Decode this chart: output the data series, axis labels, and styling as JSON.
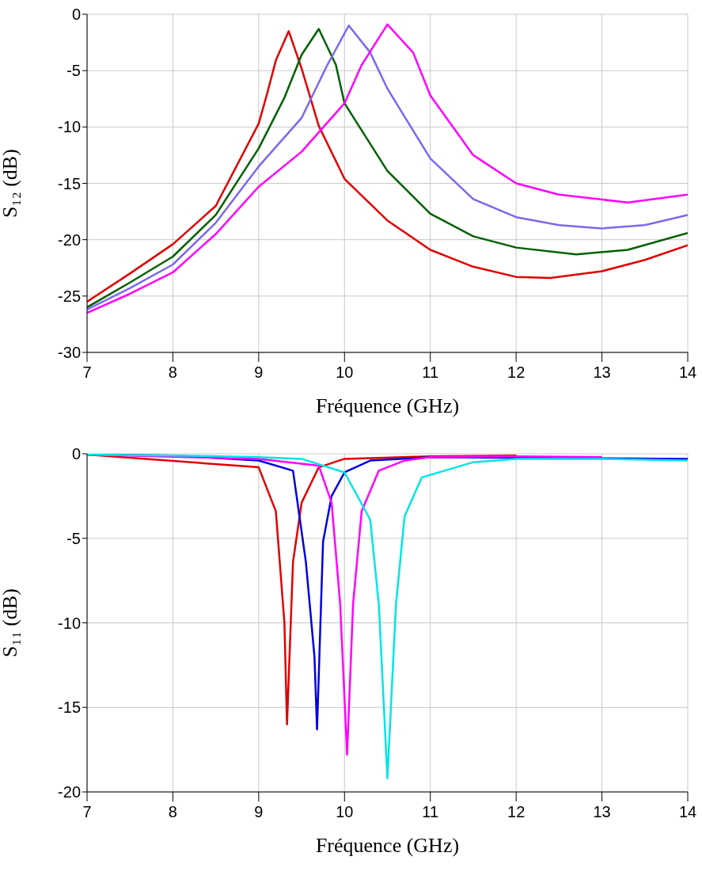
{
  "chart_data": [
    {
      "type": "line",
      "xlabel": "Fréquence (GHz)",
      "ylabel": "S₁₂ (dB)",
      "xlim": [
        7,
        14
      ],
      "xticks": [
        7,
        8,
        9,
        10,
        11,
        12,
        13,
        14
      ],
      "ylim": [
        -30,
        0
      ],
      "yticks": [
        -30,
        -25,
        -20,
        -15,
        -10,
        -5,
        0
      ],
      "grid": true,
      "series": [
        {
          "color": "#e00000",
          "x": [
            7,
            7.5,
            8,
            8.5,
            9,
            9.1,
            9.2,
            9.35,
            9.5,
            9.7,
            10,
            10.5,
            11,
            11.5,
            12,
            12.4,
            13,
            13.5,
            14
          ],
          "values": [
            -25.5,
            -23,
            -20.4,
            -17,
            -9.7,
            -7,
            -4.1,
            -1.5,
            -4.8,
            -9.9,
            -14.6,
            -18.3,
            -20.9,
            -22.4,
            -23.3,
            -23.4,
            -22.8,
            -21.8,
            -20.5
          ]
        },
        {
          "color": "#006000",
          "x": [
            7,
            7.5,
            8,
            8.5,
            9,
            9.3,
            9.5,
            9.7,
            9.9,
            10,
            10.5,
            11,
            11.5,
            12,
            12.7,
            13.3,
            14
          ],
          "values": [
            -26,
            -23.8,
            -21.5,
            -17.8,
            -11.9,
            -7.4,
            -3.6,
            -1.3,
            -4.5,
            -7.9,
            -13.9,
            -17.7,
            -19.7,
            -20.7,
            -21.3,
            -20.9,
            -19.4
          ]
        },
        {
          "color": "#7b68ee",
          "x": [
            7,
            7.5,
            8,
            8.5,
            9,
            9.5,
            9.8,
            10.05,
            10.3,
            10.5,
            11,
            11.5,
            12,
            12.5,
            13,
            13.5,
            14
          ],
          "values": [
            -26.2,
            -24.3,
            -22.2,
            -18.5,
            -13.5,
            -9.2,
            -4.5,
            -1,
            -3.4,
            -6.6,
            -12.8,
            -16.4,
            -18,
            -18.7,
            -19,
            -18.7,
            -17.8
          ]
        },
        {
          "color": "#ff00ff",
          "x": [
            7,
            7.5,
            8,
            8.5,
            9,
            9.5,
            10,
            10.2,
            10.5,
            10.8,
            11,
            11.5,
            12,
            12.5,
            13.3,
            14
          ],
          "values": [
            -26.5,
            -24.8,
            -22.9,
            -19.5,
            -15.3,
            -12.2,
            -7.9,
            -4.5,
            -0.9,
            -3.4,
            -7.2,
            -12.5,
            -15,
            -16,
            -16.7,
            -16
          ]
        }
      ]
    },
    {
      "type": "line",
      "xlabel": "Fréquence (GHz)",
      "ylabel": "S₁₁ (dB)",
      "xlim": [
        7,
        14
      ],
      "xticks": [
        7,
        8,
        9,
        10,
        11,
        12,
        13,
        14
      ],
      "ylim": [
        -20,
        0
      ],
      "yticks": [
        -20,
        -15,
        -10,
        -5,
        0
      ],
      "grid": true,
      "series": [
        {
          "color": "#e00000",
          "x": [
            7,
            9,
            9.2,
            9.3,
            9.33,
            9.4,
            9.5,
            9.7,
            10,
            11,
            12
          ],
          "values": [
            -0.05,
            -0.8,
            -3.4,
            -10,
            -16,
            -6.4,
            -2.9,
            -0.8,
            -0.3,
            -0.15,
            -0.1
          ]
        },
        {
          "color": "#0000e0",
          "x": [
            7,
            8,
            9,
            9.4,
            9.55,
            9.65,
            9.68,
            9.75,
            9.85,
            10,
            10.3,
            11,
            14
          ],
          "values": [
            -0.05,
            -0.1,
            -0.4,
            -1,
            -6.4,
            -12,
            -16.3,
            -5.2,
            -2.5,
            -1.1,
            -0.4,
            -0.2,
            -0.3
          ]
        },
        {
          "color": "#ff00ff",
          "x": [
            7,
            9,
            9.7,
            9.85,
            9.95,
            10.03,
            10.1,
            10.2,
            10.4,
            10.7,
            11,
            12,
            13
          ],
          "values": [
            -0.05,
            -0.3,
            -0.7,
            -2.9,
            -8.9,
            -17.8,
            -8.9,
            -3.4,
            -1,
            -0.4,
            -0.2,
            -0.15,
            -0.2
          ]
        },
        {
          "color": "#00e5e5",
          "x": [
            7,
            8,
            9,
            9.5,
            10,
            10.3,
            10.4,
            10.5,
            10.6,
            10.7,
            10.9,
            11.5,
            12,
            13,
            14
          ],
          "values": [
            -0.05,
            -0.1,
            -0.2,
            -0.3,
            -1.1,
            -3.9,
            -8.9,
            -19.2,
            -8.9,
            -3.7,
            -1.4,
            -0.5,
            -0.3,
            -0.3,
            -0.4
          ]
        }
      ]
    }
  ]
}
